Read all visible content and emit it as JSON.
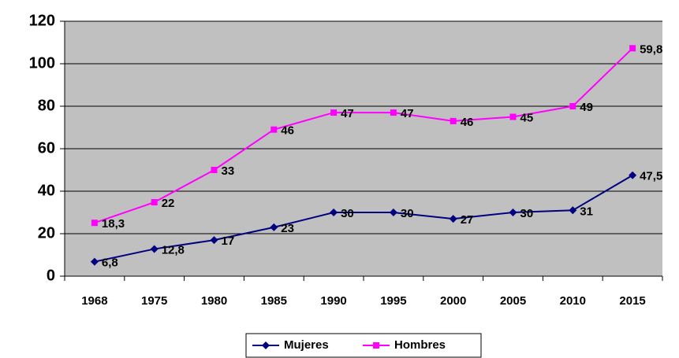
{
  "chart_data": {
    "type": "line",
    "stacked": true,
    "categories": [
      "1968",
      "1975",
      "1980",
      "1985",
      "1990",
      "1995",
      "2000",
      "2005",
      "2010",
      "2015"
    ],
    "series": [
      {
        "name": "Mujeres",
        "color": "#000080",
        "marker": "diamond",
        "values": [
          6.8,
          12.8,
          17,
          23,
          30,
          30,
          27,
          30,
          31,
          47.5
        ],
        "value_labels": [
          "6,8",
          "12,8",
          "17",
          "23",
          "30",
          "30",
          "27",
          "30",
          "31",
          "47,5"
        ]
      },
      {
        "name": "Hombres",
        "color": "#ff00ff",
        "marker": "square",
        "values": [
          18.3,
          22,
          33,
          46,
          47,
          47,
          46,
          45,
          49,
          59.8
        ],
        "value_labels": [
          "18,3",
          "22",
          "33",
          "46",
          "47",
          "47",
          "46",
          "45",
          "49",
          "59,8"
        ]
      }
    ],
    "ylim": [
      0,
      120
    ],
    "yticks": [
      0,
      20,
      40,
      60,
      80,
      100,
      120
    ],
    "grid": true,
    "plot_background": "#c0c0c0",
    "legend": "bottom"
  }
}
